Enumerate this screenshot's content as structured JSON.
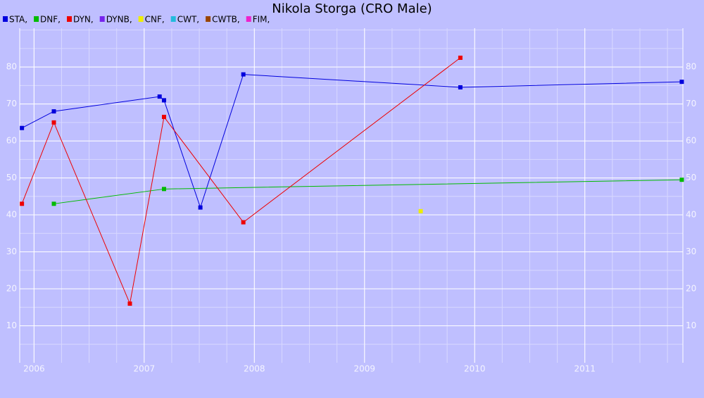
{
  "chart_data": {
    "type": "line",
    "title": "Nikola Storga (CRO Male)",
    "xlim": [
      2005.87,
      2011.89
    ],
    "xticks": [
      2006,
      2007,
      2008,
      2009,
      2010,
      2011
    ],
    "ylim": [
      0,
      90.5
    ],
    "yticks": [
      10,
      20,
      30,
      40,
      50,
      60,
      70,
      80
    ],
    "grid": true,
    "series": [
      {
        "name": "STA,",
        "color": "#0000dd",
        "x": [
          2005.89,
          2006.18,
          2007.14,
          2007.18,
          2007.51,
          2007.9,
          2009.87,
          2011.88
        ],
        "values": [
          63.5,
          68,
          72,
          71,
          42,
          78,
          74.5,
          76
        ]
      },
      {
        "name": "DNF,",
        "color": "#00bb00",
        "x": [
          2006.18,
          2007.18,
          2011.88
        ],
        "values": [
          43,
          47,
          49.5
        ]
      },
      {
        "name": "DYN,",
        "color": "#ee0000",
        "x": [
          2005.89,
          2006.18,
          2006.87,
          2007.18,
          2007.9,
          2009.87
        ],
        "values": [
          43,
          65,
          16,
          66.5,
          38,
          82.5
        ]
      },
      {
        "name": "DYNB,",
        "color": "#7722ee",
        "x": [],
        "values": []
      },
      {
        "name": "CNF,",
        "color": "#eeee00",
        "x": [
          2009.51
        ],
        "values": [
          41
        ]
      },
      {
        "name": "CWT,",
        "color": "#22bbdd",
        "x": [],
        "values": []
      },
      {
        "name": "CWTB,",
        "color": "#994400",
        "x": [],
        "values": []
      },
      {
        "name": "FIM,",
        "color": "#ee22cc",
        "x": [],
        "values": []
      }
    ]
  }
}
